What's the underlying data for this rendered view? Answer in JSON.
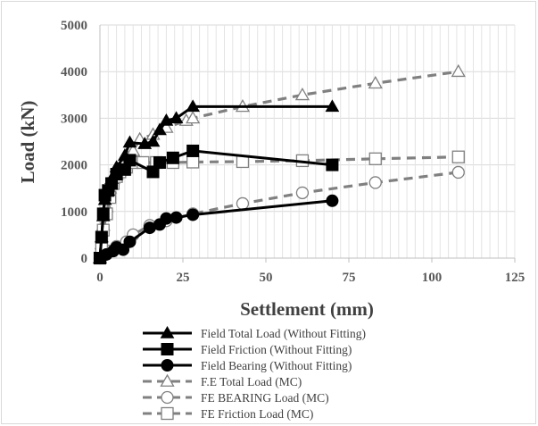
{
  "chart_data": {
    "type": "line",
    "xlabel": "Settlement (mm)",
    "ylabel": "Load (kN)",
    "xlim": [
      0,
      125
    ],
    "ylim": [
      0,
      5000
    ],
    "x_ticks": [
      "0",
      "25",
      "50",
      "75",
      "100",
      "125"
    ],
    "y_ticks": [
      "0",
      "1000",
      "2000",
      "3000",
      "4000",
      "5000"
    ],
    "grid": "vertical and horizontal",
    "legend_position": "bottom",
    "series": [
      {
        "name": "Field Total Load (Without Fitting)",
        "color": "#000000",
        "line": "solid",
        "marker": "triangle-filled",
        "points": [
          [
            0,
            0
          ],
          [
            0.5,
            450
          ],
          [
            1,
            900
          ],
          [
            1.5,
            1250
          ],
          [
            2.5,
            1450
          ],
          [
            3.5,
            1700
          ],
          [
            5,
            1950
          ],
          [
            7.5,
            2200
          ],
          [
            9,
            2480
          ],
          [
            13.5,
            2450
          ],
          [
            16,
            2500
          ],
          [
            18,
            2750
          ],
          [
            20,
            2950
          ],
          [
            23,
            3000
          ],
          [
            28,
            3250
          ],
          [
            70,
            3250
          ]
        ]
      },
      {
        "name": "Field Friction (Without Fitting)",
        "color": "#000000",
        "line": "solid",
        "marker": "square-filled",
        "points": [
          [
            0,
            0
          ],
          [
            0.5,
            450
          ],
          [
            1,
            950
          ],
          [
            1.5,
            1350
          ],
          [
            2.5,
            1450
          ],
          [
            3.5,
            1600
          ],
          [
            5,
            1800
          ],
          [
            7.5,
            1900
          ],
          [
            9,
            2100
          ],
          [
            16,
            1850
          ],
          [
            18,
            2050
          ],
          [
            22,
            2150
          ],
          [
            28,
            2300
          ],
          [
            70,
            2000
          ]
        ]
      },
      {
        "name": "Field Bearing (Without Fitting)",
        "color": "#000000",
        "line": "solid",
        "marker": "circle-filled",
        "points": [
          [
            0,
            0
          ],
          [
            2,
            80
          ],
          [
            4,
            150
          ],
          [
            5,
            230
          ],
          [
            7,
            180
          ],
          [
            9,
            350
          ],
          [
            15,
            650
          ],
          [
            18,
            720
          ],
          [
            20,
            850
          ],
          [
            23,
            870
          ],
          [
            28,
            930
          ],
          [
            70,
            1230
          ]
        ]
      },
      {
        "name": "F.E Total Load (MC)",
        "color": "#808080",
        "line": "dashed",
        "marker": "triangle-open",
        "points": [
          [
            0,
            0
          ],
          [
            0.5,
            300
          ],
          [
            1,
            700
          ],
          [
            2,
            1100
          ],
          [
            3,
            1500
          ],
          [
            4,
            1700
          ],
          [
            5,
            1800
          ],
          [
            6,
            1900
          ],
          [
            8,
            2200
          ],
          [
            10,
            2300
          ],
          [
            12,
            2550
          ],
          [
            16,
            2650
          ],
          [
            20,
            2800
          ],
          [
            26,
            2950
          ],
          [
            28,
            3000
          ],
          [
            43,
            3250
          ],
          [
            61,
            3500
          ],
          [
            83,
            3750
          ],
          [
            108,
            4000
          ]
        ]
      },
      {
        "name": "FE BEARING Load  (MC)",
        "color": "#808080",
        "line": "dashed",
        "marker": "circle-open",
        "points": [
          [
            0,
            0
          ],
          [
            1,
            50
          ],
          [
            3,
            150
          ],
          [
            5,
            250
          ],
          [
            8,
            350
          ],
          [
            10,
            500
          ],
          [
            15,
            700
          ],
          [
            20,
            800
          ],
          [
            28,
            950
          ],
          [
            43,
            1170
          ],
          [
            61,
            1400
          ],
          [
            83,
            1620
          ],
          [
            108,
            1840
          ]
        ]
      },
      {
        "name": "FE Friction Load (MC)",
        "color": "#808080",
        "line": "dashed",
        "marker": "square-open",
        "points": [
          [
            0,
            0
          ],
          [
            0.5,
            200
          ],
          [
            1,
            600
          ],
          [
            2,
            950
          ],
          [
            3,
            1300
          ],
          [
            4,
            1600
          ],
          [
            5,
            1750
          ],
          [
            6,
            1850
          ],
          [
            8,
            1950
          ],
          [
            10,
            2050
          ],
          [
            13,
            2050
          ],
          [
            17,
            2050
          ],
          [
            22,
            2050
          ],
          [
            28,
            2060
          ],
          [
            43,
            2070
          ],
          [
            61,
            2090
          ],
          [
            83,
            2130
          ],
          [
            108,
            2170
          ]
        ]
      }
    ]
  }
}
